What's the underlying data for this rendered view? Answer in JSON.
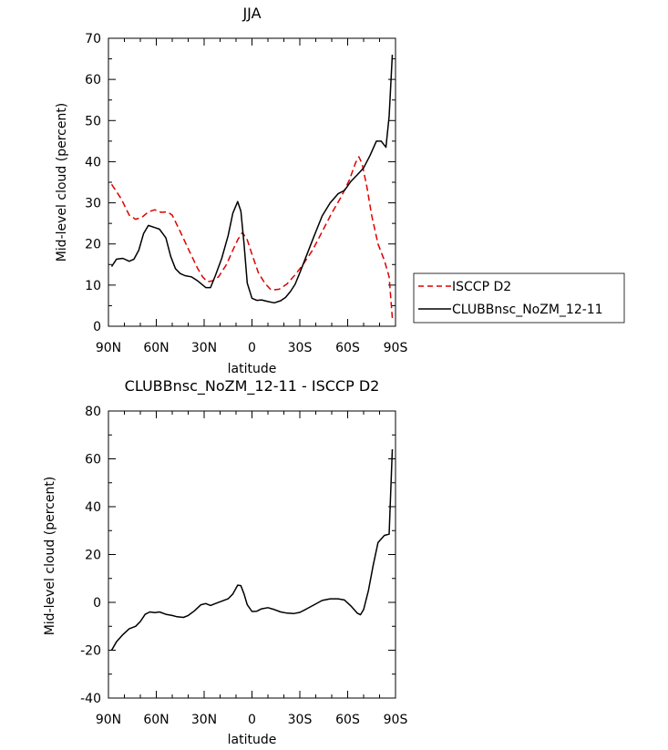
{
  "chart_data": [
    {
      "type": "line",
      "title": "JJA",
      "xlabel": "latitude",
      "ylabel": "Mid-level cloud (percent)",
      "xlim": [
        90,
        -90
      ],
      "ylim": [
        0,
        70
      ],
      "x_ticks": [
        "90N",
        "60N",
        "30N",
        "0",
        "30S",
        "60S",
        "90S"
      ],
      "y_ticks": [
        0,
        10,
        20,
        30,
        40,
        50,
        60,
        70
      ],
      "legend_position": "right",
      "series": [
        {
          "name": "ISCCP D2",
          "color": "#dd0000",
          "style": "dashed",
          "x": [
            88,
            82,
            77,
            73,
            69,
            65,
            61,
            57,
            53,
            50,
            45,
            39,
            34,
            31,
            28,
            25,
            21,
            16,
            12,
            9,
            6,
            3,
            0,
            -4,
            -8,
            -12,
            -17,
            -22,
            -27,
            -32,
            -38,
            -44,
            -50,
            -56,
            -61,
            -65,
            -67,
            -69,
            -72,
            -75,
            -79,
            -83,
            -86,
            -88
          ],
          "y": [
            34.5,
            31,
            27,
            26,
            26.5,
            27.8,
            28.3,
            27.7,
            27.8,
            27,
            23,
            18,
            14,
            12,
            10.8,
            11,
            12,
            15,
            18.5,
            21,
            22.8,
            21,
            17.5,
            13,
            10.5,
            8.8,
            9,
            10.3,
            12.5,
            15,
            18.5,
            23,
            27.5,
            31.5,
            35.5,
            39.8,
            41.2,
            39.5,
            34,
            27,
            20,
            16,
            12,
            2
          ]
        },
        {
          "name": "CLUBBnsc_NoZM_12-11",
          "color": "#000000",
          "style": "solid",
          "x": [
            88,
            85,
            81,
            77,
            74,
            71,
            68,
            65,
            61,
            58,
            54,
            51,
            48,
            45,
            42,
            38,
            34,
            29,
            26,
            23,
            19,
            15,
            12,
            9,
            7,
            5,
            3,
            0,
            -3,
            -6,
            -10,
            -14,
            -18,
            -21,
            -24,
            -27,
            -30,
            -34,
            -39,
            -44,
            -49,
            -54,
            -58,
            -62,
            -66,
            -70,
            -74,
            -78,
            -81,
            -84,
            -86,
            -88
          ],
          "y": [
            14.5,
            16.3,
            16.5,
            15.8,
            16.3,
            18.5,
            22.5,
            24.5,
            24,
            23.6,
            21.5,
            17,
            14,
            12.8,
            12.3,
            12,
            11,
            9.4,
            9.4,
            12.3,
            16.5,
            22,
            27.5,
            30.3,
            28,
            20,
            10.5,
            6.8,
            6.3,
            6.4,
            6,
            5.7,
            6.2,
            7,
            8.4,
            10.2,
            13,
            17,
            22,
            26.8,
            30,
            32.2,
            33,
            35.2,
            36.8,
            38.5,
            41.5,
            45,
            45,
            43.5,
            51,
            66
          ]
        }
      ]
    },
    {
      "type": "line",
      "title": "CLUBBnsc_NoZM_12-11 - ISCCP D2",
      "xlabel": "latitude",
      "ylabel": "Mid-level cloud (percent)",
      "xlim": [
        90,
        -90
      ],
      "ylim": [
        -40,
        80
      ],
      "x_ticks": [
        "90N",
        "60N",
        "30N",
        "0",
        "30S",
        "60S",
        "90S"
      ],
      "y_ticks": [
        -40,
        -20,
        0,
        20,
        40,
        60,
        80
      ],
      "series": [
        {
          "color": "#000000",
          "style": "solid",
          "x": [
            88,
            85,
            81,
            77,
            73,
            70,
            67,
            64,
            61,
            58,
            54,
            50,
            47,
            43,
            40,
            36,
            32,
            29,
            26,
            23,
            19,
            15,
            12,
            9,
            7,
            5,
            3,
            0,
            -3,
            -6,
            -10,
            -14,
            -18,
            -22,
            -26,
            -30,
            -34,
            -39,
            -44,
            -49,
            -54,
            -58,
            -62,
            -66,
            -68,
            -70,
            -73,
            -76,
            -79,
            -83,
            -86,
            -88
          ],
          "y": [
            -20,
            -16.5,
            -13.5,
            -11,
            -10,
            -8,
            -5,
            -4,
            -4.3,
            -4,
            -5,
            -5.5,
            -6,
            -6.3,
            -5.5,
            -3.5,
            -1,
            -0.5,
            -1.3,
            -0.5,
            0.5,
            1.5,
            3.5,
            7.2,
            7,
            3.5,
            -1,
            -3.8,
            -3.7,
            -2.7,
            -2.2,
            -3,
            -4,
            -4.5,
            -4.7,
            -4.2,
            -2.8,
            -1,
            0.8,
            1.5,
            1.5,
            1,
            -1.5,
            -4.5,
            -5.2,
            -3,
            5,
            15.5,
            25,
            28,
            28.5,
            64
          ]
        }
      ]
    }
  ]
}
